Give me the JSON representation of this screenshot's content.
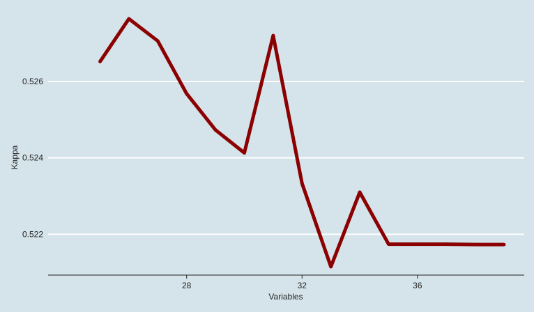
{
  "chart_data": {
    "type": "line",
    "title": "",
    "xlabel": "Variables",
    "ylabel": "Kappa",
    "x": [
      25,
      26,
      27,
      28,
      29,
      30,
      31,
      32,
      33,
      34,
      35,
      36,
      37,
      38,
      39
    ],
    "series": [
      {
        "values": [
          0.52652,
          0.52764,
          0.52706,
          0.52568,
          0.52473,
          0.52413,
          0.5272,
          0.52333,
          0.52115,
          0.5231,
          0.52174,
          0.52174,
          0.52174,
          0.52173,
          0.52173
        ],
        "color": "#8b0000"
      }
    ],
    "xlim": [
      23.2,
      39.7
    ],
    "ylim": [
      0.52093,
      0.52795
    ],
    "xticks": [
      28,
      32,
      36
    ],
    "xtick_labels": [
      "28",
      "32",
      "36"
    ],
    "yticks": [
      0.522,
      0.524,
      0.526
    ],
    "ytick_labels": [
      "0.522",
      "0.524",
      "0.526"
    ],
    "grid": "horizontal-major",
    "legend": "none",
    "background": "#d5e3ea",
    "gridline_color": "#ffffff"
  }
}
